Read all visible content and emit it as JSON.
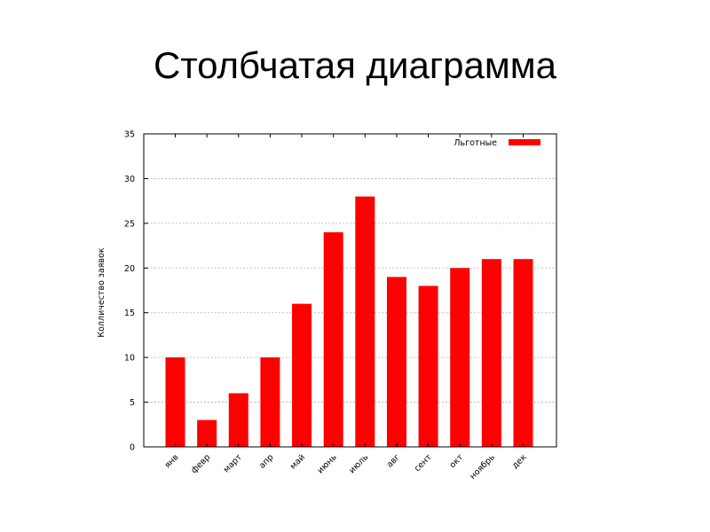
{
  "slide": {
    "title": "Столбчатая диаграмма"
  },
  "chart_data": {
    "type": "bar",
    "categories": [
      "янв",
      "февр",
      "март",
      "апр",
      "май",
      "июнь",
      "июль",
      "авг",
      "сент",
      "окт",
      "ноябрь",
      "дек"
    ],
    "series": [
      {
        "name": "Льготные",
        "values": [
          10,
          3,
          6,
          10,
          16,
          24,
          28,
          19,
          18,
          20,
          21,
          21
        ],
        "color": "#ff0000"
      }
    ],
    "title": "",
    "xlabel": "",
    "ylabel": "Колличество заявок",
    "ylim": [
      0,
      35
    ],
    "yticks": [
      0,
      5,
      10,
      15,
      20,
      25,
      30,
      35
    ],
    "grid": true,
    "legend_position": "top-right"
  }
}
